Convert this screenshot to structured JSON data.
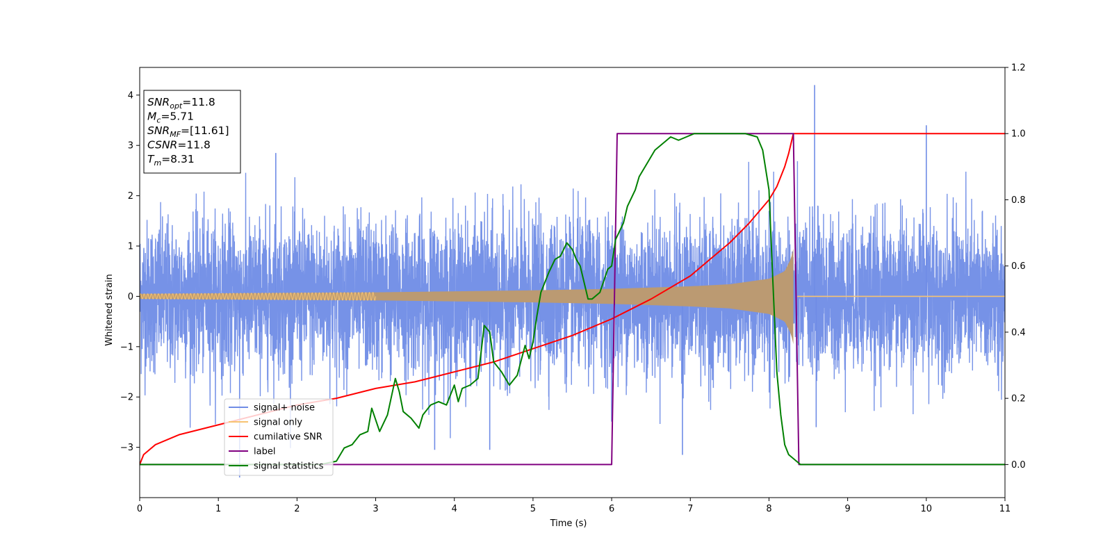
{
  "chart_data": {
    "type": "line",
    "xlabel": "Time (s)",
    "ylabel": "Whitened strain",
    "xlim": [
      0,
      11
    ],
    "ylim_left": [
      -4.0,
      4.55
    ],
    "ylim_right": [
      -0.1,
      1.2
    ],
    "x_ticks": [
      "0",
      "1",
      "2",
      "3",
      "4",
      "5",
      "6",
      "7",
      "8",
      "9",
      "10",
      "11"
    ],
    "y_ticks_left": [
      "−3",
      "−2",
      "−1",
      "0",
      "1",
      "2",
      "3",
      "4"
    ],
    "y_ticks_right": [
      "0.0",
      "0.2",
      "0.4",
      "0.6",
      "0.8",
      "1.0",
      "1.2"
    ],
    "grid": false,
    "legend_position": "lower-left",
    "info_box": {
      "lines": [
        {
          "main": "SNR",
          "sub": "opt",
          "rest": "=11.8"
        },
        {
          "main": "M",
          "sub": "c",
          "rest": "=5.71"
        },
        {
          "main": "SNR",
          "sub": "MF",
          "rest": "=[11.61]"
        },
        {
          "main": "CSNR",
          "sub": "",
          "rest": "=11.8"
        },
        {
          "main": "T",
          "sub": "m",
          "rest": "=8.31"
        }
      ]
    },
    "series": [
      {
        "name": "signal+ noise",
        "color": "#6f8ce6",
        "axis": "left",
        "kind": "noise",
        "noise_sigma": 0.75,
        "spikes": [
          [
            1.27,
            -3.6
          ],
          [
            1.73,
            2.85
          ],
          [
            8.58,
            4.2
          ],
          [
            10.0,
            3.4
          ],
          [
            3.75,
            -3.05
          ],
          [
            6.9,
            -3.15
          ],
          [
            4.45,
            -3.05
          ],
          [
            8.6,
            -2.6
          ]
        ]
      },
      {
        "name": "signal only",
        "color": "#f7c372",
        "fill_color": "#bb9a72",
        "axis": "left",
        "kind": "chirp",
        "t_merge": 8.31,
        "envelope": [
          [
            0,
            0.05
          ],
          [
            1,
            0.06
          ],
          [
            2,
            0.07
          ],
          [
            3,
            0.08
          ],
          [
            4,
            0.1
          ],
          [
            5,
            0.12
          ],
          [
            6,
            0.15
          ],
          [
            7,
            0.2
          ],
          [
            7.5,
            0.24
          ],
          [
            8.0,
            0.35
          ],
          [
            8.2,
            0.5
          ],
          [
            8.28,
            0.75
          ],
          [
            8.31,
            0.95
          ]
        ]
      },
      {
        "name": "cumilative SNR",
        "color": "#ff0000",
        "axis": "right",
        "x": [
          0,
          0.05,
          0.2,
          0.5,
          1,
          1.5,
          2,
          2.5,
          3,
          3.5,
          4,
          4.5,
          5,
          5.5,
          6,
          6.5,
          7,
          7.25,
          7.5,
          7.75,
          8.0,
          8.1,
          8.2,
          8.25,
          8.31,
          8.31,
          9,
          10,
          11
        ],
        "y": [
          0.0,
          0.03,
          0.06,
          0.09,
          0.12,
          0.15,
          0.18,
          0.2,
          0.23,
          0.25,
          0.28,
          0.31,
          0.35,
          0.39,
          0.44,
          0.5,
          0.57,
          0.62,
          0.67,
          0.73,
          0.8,
          0.84,
          0.9,
          0.94,
          1.0,
          1.0,
          1.0,
          1.0,
          1.0
        ]
      },
      {
        "name": "label",
        "color": "#800080",
        "axis": "right",
        "x": [
          0,
          6.0,
          6.07,
          8.31,
          8.38,
          11
        ],
        "y": [
          0,
          0,
          1,
          1,
          0,
          0
        ]
      },
      {
        "name": "signal statistics",
        "color": "#008000",
        "axis": "right",
        "x": [
          0,
          2.3,
          2.5,
          2.6,
          2.7,
          2.8,
          2.9,
          2.95,
          3.05,
          3.15,
          3.25,
          3.3,
          3.35,
          3.45,
          3.55,
          3.6,
          3.7,
          3.8,
          3.9,
          4.0,
          4.05,
          4.1,
          4.2,
          4.3,
          4.38,
          4.45,
          4.5,
          4.6,
          4.7,
          4.8,
          4.9,
          4.95,
          5.0,
          5.05,
          5.1,
          5.15,
          5.2,
          5.28,
          5.35,
          5.43,
          5.5,
          5.55,
          5.6,
          5.65,
          5.7,
          5.75,
          5.85,
          5.95,
          6.0,
          6.05,
          6.15,
          6.2,
          6.3,
          6.35,
          6.45,
          6.55,
          6.65,
          6.75,
          6.85,
          6.95,
          7.05,
          7.15,
          7.3,
          7.5,
          7.7,
          7.85,
          7.92,
          8.0,
          8.05,
          8.1,
          8.15,
          8.2,
          8.25,
          8.3,
          8.35,
          8.4,
          8.5,
          9,
          10,
          11
        ],
        "y": [
          0.0,
          0.0,
          0.01,
          0.05,
          0.06,
          0.09,
          0.1,
          0.17,
          0.1,
          0.15,
          0.26,
          0.22,
          0.16,
          0.14,
          0.11,
          0.15,
          0.18,
          0.19,
          0.18,
          0.24,
          0.19,
          0.23,
          0.24,
          0.26,
          0.42,
          0.4,
          0.31,
          0.28,
          0.24,
          0.27,
          0.36,
          0.32,
          0.37,
          0.45,
          0.52,
          0.55,
          0.58,
          0.62,
          0.63,
          0.67,
          0.65,
          0.62,
          0.6,
          0.55,
          0.5,
          0.5,
          0.52,
          0.59,
          0.6,
          0.68,
          0.73,
          0.78,
          0.83,
          0.87,
          0.91,
          0.95,
          0.97,
          0.99,
          0.98,
          0.99,
          1.0,
          1.0,
          1.0,
          1.0,
          1.0,
          0.99,
          0.95,
          0.83,
          0.55,
          0.28,
          0.15,
          0.06,
          0.03,
          0.02,
          0.01,
          0.0,
          0.0,
          0.0,
          0.0,
          0.0
        ]
      }
    ]
  }
}
